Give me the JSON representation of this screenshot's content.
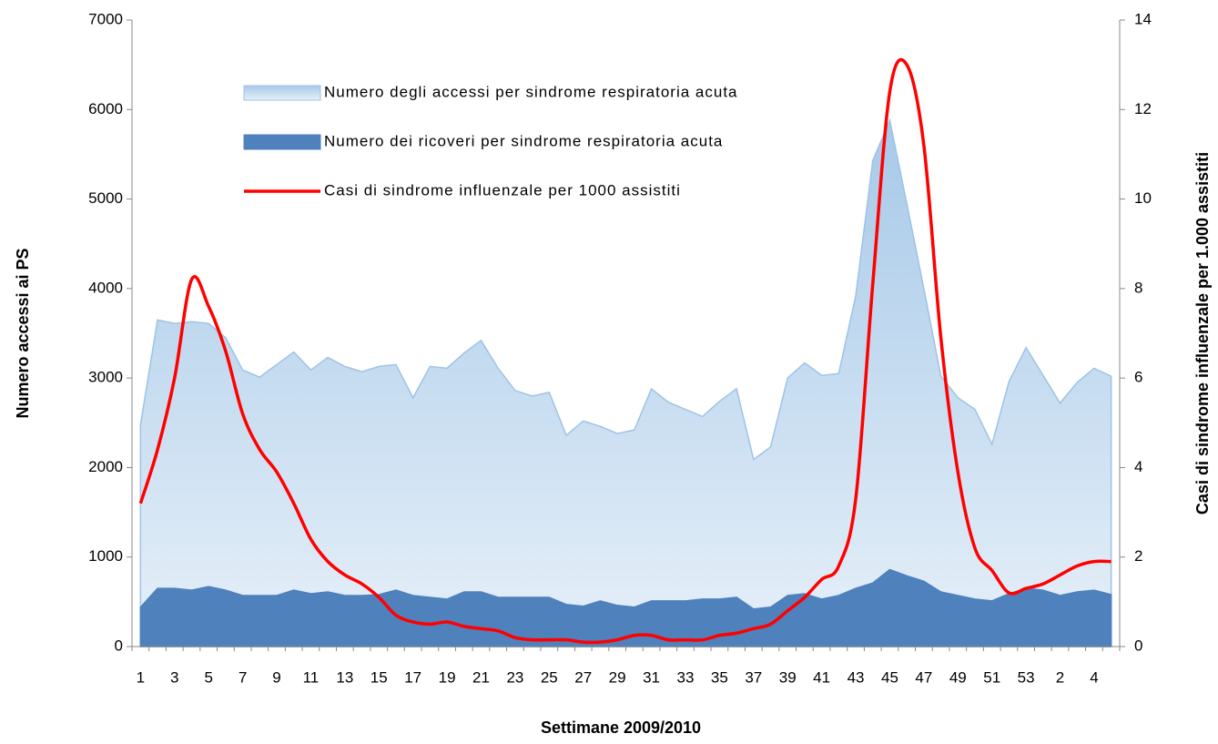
{
  "chart_data": {
    "type": "area-line",
    "x_label": "Settimane 2009/2010",
    "y_label": "Numero accessi ai PS",
    "y2_label": "Casi di sindrome influenzale per 1.000 assistiti",
    "categories": [
      "1",
      null,
      "3",
      null,
      "5",
      null,
      "7",
      null,
      "9",
      null,
      "11",
      null,
      "13",
      null,
      "15",
      null,
      "17",
      null,
      "19",
      null,
      "21",
      null,
      "23",
      null,
      "25",
      null,
      "27",
      null,
      "29",
      null,
      "31",
      null,
      "33",
      null,
      "35",
      null,
      "37",
      null,
      "39",
      null,
      "41",
      null,
      "43",
      null,
      "45",
      null,
      "47",
      null,
      "49",
      null,
      "51",
      null,
      "53",
      null,
      "2",
      null,
      "4",
      null
    ],
    "ylim": [
      0,
      7000
    ],
    "yticks": [
      0,
      1000,
      2000,
      3000,
      4000,
      5000,
      6000,
      7000
    ],
    "y2lim": [
      0,
      14
    ],
    "y2ticks": [
      0,
      2,
      4,
      6,
      8,
      10,
      12,
      14
    ],
    "series": [
      {
        "name": "Numero degli accessi per sindrome respiratoria acuta",
        "kind": "area",
        "color": "#9dc3e6",
        "values": [
          2480,
          3650,
          3610,
          3630,
          3610,
          3450,
          3090,
          3010,
          3150,
          3290,
          3090,
          3230,
          3130,
          3070,
          3130,
          3150,
          2780,
          3130,
          3110,
          3280,
          3420,
          3110,
          2860,
          2800,
          2840,
          2360,
          2520,
          2460,
          2380,
          2420,
          2880,
          2730,
          2650,
          2570,
          2740,
          2880,
          2090,
          2230,
          3000,
          3170,
          3030,
          3050,
          3920,
          5430,
          5880,
          4950,
          4000,
          3020,
          2780,
          2650,
          2260,
          2960,
          3340,
          3030,
          2720,
          2950,
          3110,
          3020
        ]
      },
      {
        "name": "Numero dei ricoveri per sindrome respiratoria acuta",
        "kind": "area",
        "color": "#4f81bd",
        "values": [
          440,
          650,
          650,
          630,
          670,
          630,
          570,
          570,
          570,
          630,
          590,
          610,
          570,
          570,
          580,
          630,
          570,
          550,
          530,
          610,
          610,
          550,
          550,
          550,
          550,
          470,
          450,
          510,
          460,
          440,
          510,
          510,
          510,
          530,
          530,
          550,
          420,
          440,
          570,
          590,
          530,
          570,
          650,
          710,
          860,
          790,
          730,
          610,
          570,
          530,
          510,
          590,
          650,
          630,
          570,
          610,
          630,
          580
        ]
      },
      {
        "name": "Casi di sindrome influenzale per 1000 assistiti",
        "kind": "line",
        "axis": "y2",
        "color": "#ff0000",
        "values": [
          3.2,
          4.4,
          6,
          8.2,
          7.6,
          6.6,
          5.2,
          4.4,
          3.9,
          3.2,
          2.4,
          1.9,
          1.6,
          1.4,
          1.1,
          0.7,
          0.55,
          0.5,
          0.55,
          0.45,
          0.4,
          0.35,
          0.2,
          0.15,
          0.15,
          0.15,
          0.1,
          0.1,
          0.15,
          0.25,
          0.25,
          0.15,
          0.15,
          0.15,
          0.25,
          0.3,
          0.4,
          0.5,
          0.8,
          1.1,
          1.5,
          1.8,
          3.3,
          8.1,
          12.4,
          13,
          11.2,
          6.9,
          3.9,
          2.2,
          1.7,
          1.2,
          1.3,
          1.4,
          1.6,
          1.8,
          1.9,
          1.9
        ]
      }
    ]
  }
}
